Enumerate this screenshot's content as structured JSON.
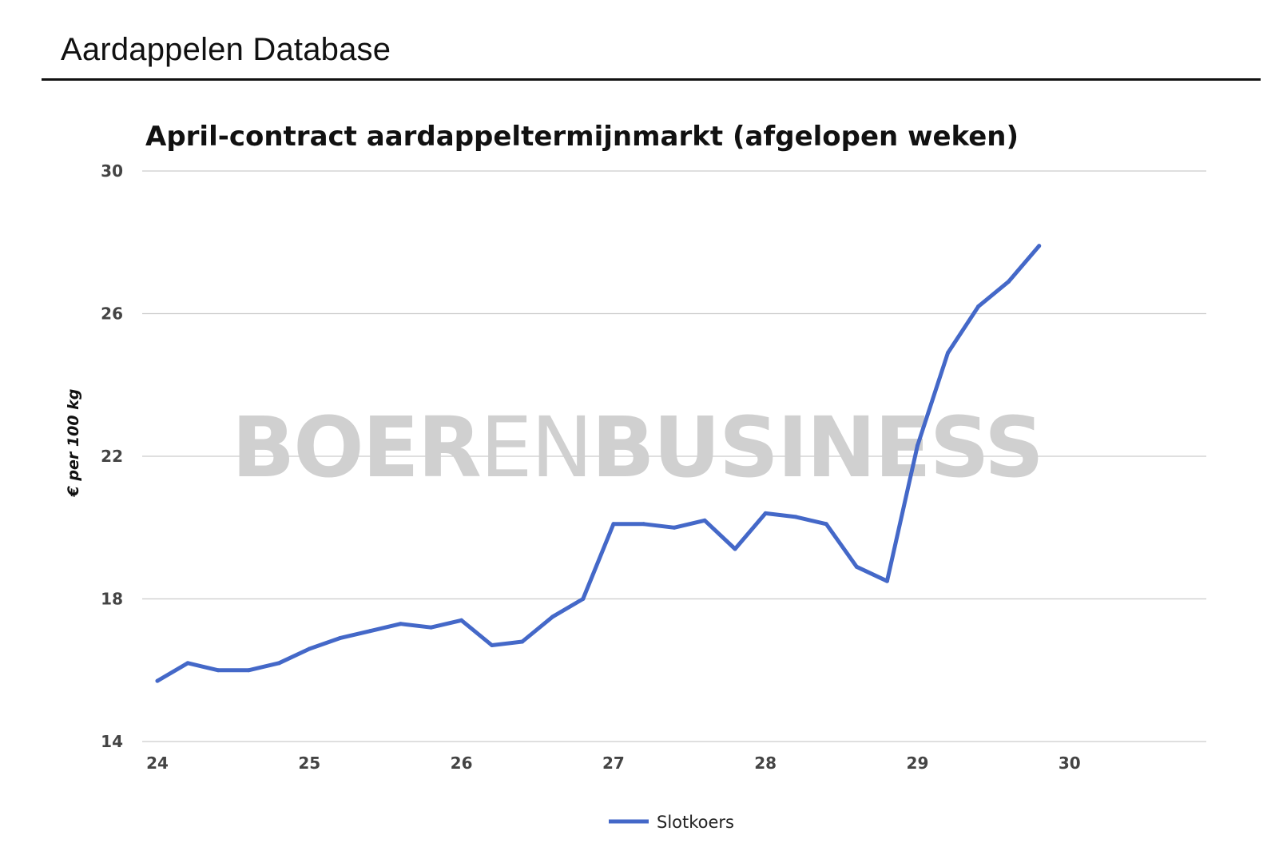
{
  "header": {
    "title": "Aardappelen Database"
  },
  "watermark": {
    "text_bold": "BOER",
    "text_light": "EN",
    "text_bold2": "BUSINESS"
  },
  "chart_data": {
    "type": "line",
    "title": "April-contract aardappeltermijnmarkt (afgelopen weken)",
    "xlabel": "",
    "ylabel": "€ per 100 kg",
    "xlim": [
      23.9,
      30.9
    ],
    "ylim": [
      14,
      30
    ],
    "x_ticks": [
      24,
      25,
      26,
      27,
      28,
      29,
      30
    ],
    "x_tick_labels": [
      "24",
      "25",
      "26",
      "27",
      "28",
      "29",
      "30"
    ],
    "y_ticks": [
      14,
      18,
      22,
      26,
      30
    ],
    "y_tick_labels": [
      "14",
      "18",
      "22",
      "26",
      "30"
    ],
    "grid": true,
    "legend_position": "bottom-center",
    "series": [
      {
        "name": "Slotkoers",
        "color": "#4468c8",
        "x": [
          24.0,
          24.2,
          24.4,
          24.6,
          24.8,
          25.0,
          25.2,
          25.4,
          25.6,
          25.8,
          26.0,
          26.2,
          26.4,
          26.6,
          26.8,
          27.0,
          27.2,
          27.4,
          27.6,
          27.8,
          28.0,
          28.2,
          28.4,
          28.6,
          28.8,
          29.0,
          29.2,
          29.4,
          29.6,
          29.8
        ],
        "values": [
          15.7,
          16.2,
          16.0,
          16.0,
          16.2,
          16.6,
          16.9,
          17.1,
          17.3,
          17.2,
          17.4,
          16.7,
          16.8,
          17.5,
          18.0,
          20.1,
          20.1,
          20.0,
          20.2,
          19.4,
          20.4,
          20.3,
          20.1,
          18.9,
          18.5,
          22.3,
          24.9,
          26.2,
          26.9,
          27.9
        ]
      }
    ]
  }
}
